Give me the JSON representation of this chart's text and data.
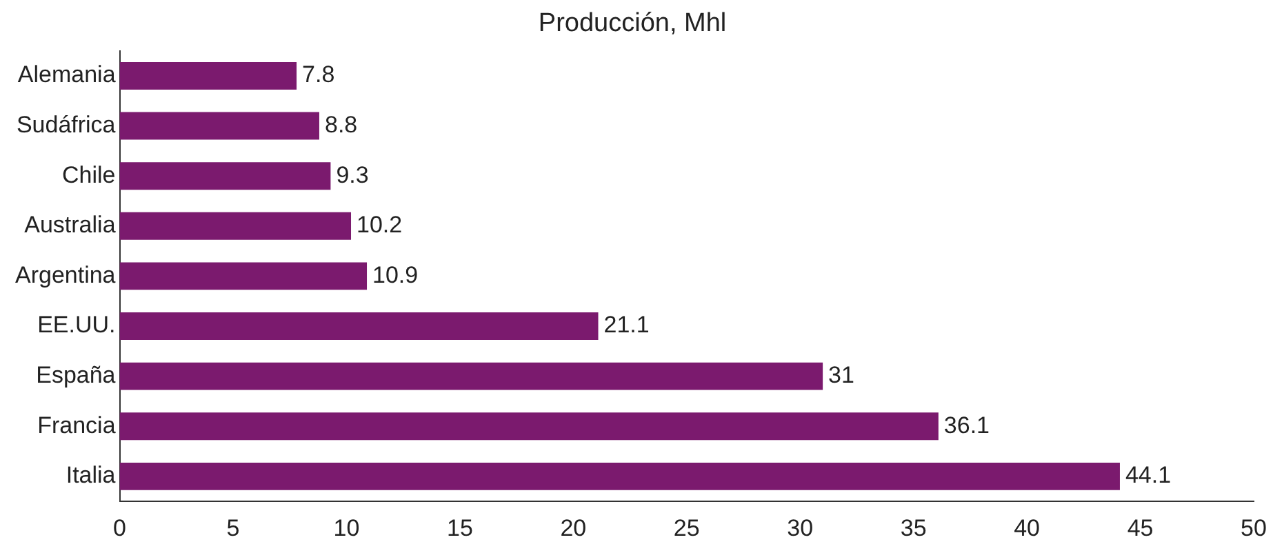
{
  "chart_data": {
    "type": "bar",
    "orientation": "horizontal",
    "title": "Producción, Mhl",
    "categories": [
      "Alemania",
      "Sudáfrica",
      "Chile",
      "Australia",
      "Argentina",
      "EE.UU.",
      "España",
      "Francia",
      "Italia"
    ],
    "values": [
      7.8,
      8.8,
      9.3,
      10.2,
      10.9,
      21.1,
      31,
      36.1,
      44.1
    ],
    "color": "#7b1a6e",
    "xlim": [
      0,
      50
    ],
    "xticks": [
      0,
      5,
      10,
      15,
      20,
      25,
      30,
      35,
      40,
      45,
      50
    ],
    "grid": false,
    "data_labels": true,
    "legend": false
  }
}
